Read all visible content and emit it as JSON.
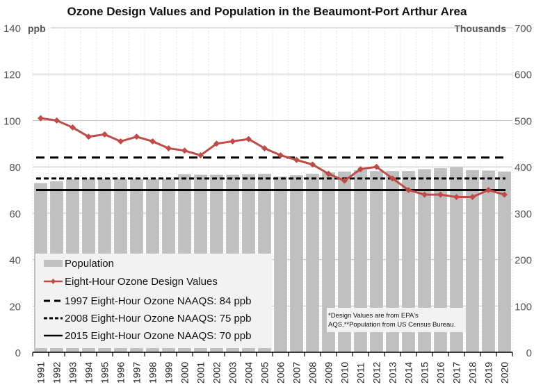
{
  "chart_data": {
    "type": "bar+line",
    "title": "Ozone Design Values and Population in the Beaumont-Port Arthur Area",
    "xlabel": "",
    "ylabel_left": "ppb",
    "ylabel_right": "Thousands",
    "ylim_left": [
      0,
      140
    ],
    "ylim_right": [
      0,
      700
    ],
    "yticks_left": [
      0,
      20,
      40,
      60,
      80,
      100,
      120,
      140
    ],
    "yticks_right": [
      0,
      100,
      200,
      300,
      400,
      500,
      600,
      700
    ],
    "grid": true,
    "categories": [
      "1991",
      "1992",
      "1993",
      "1994",
      "1995",
      "1996",
      "1997",
      "1998",
      "1999",
      "2000",
      "2001",
      "2002",
      "2003",
      "2004",
      "2005",
      "2006",
      "2007",
      "2008",
      "2009",
      "2010",
      "2011",
      "2012",
      "2013",
      "2014",
      "2015",
      "2016",
      "2017",
      "2018",
      "2019",
      "2020"
    ],
    "series": [
      {
        "name": "Population",
        "type": "bar",
        "axis": "right",
        "color": "#c0c0c0",
        "values": [
          365,
          369,
          373,
          374,
          374,
          374,
          374,
          374,
          374,
          384,
          383,
          383,
          383,
          384,
          385,
          379,
          382,
          385,
          388,
          390,
          393,
          391,
          391,
          391,
          395,
          397,
          399,
          393,
          392,
          390
        ]
      },
      {
        "name": "Eight-Hour Ozone Design Values",
        "type": "line",
        "axis": "left",
        "color": "#be4b48",
        "marker": "diamond",
        "values": [
          101,
          100,
          97,
          93,
          94,
          91,
          93,
          91,
          88,
          87,
          85,
          90,
          91,
          92,
          88,
          85,
          83,
          81,
          77,
          74,
          79,
          80,
          75,
          70,
          68,
          68,
          67,
          67,
          70,
          68
        ]
      },
      {
        "name": "1997 Eight-Hour Ozone NAAQS: 84 ppb",
        "type": "hline",
        "axis": "left",
        "style": "long-dash",
        "color": "#000000",
        "value": 84
      },
      {
        "name": "2008 Eight-Hour Ozone NAAQS: 75 ppb",
        "type": "hline",
        "axis": "left",
        "style": "short-dash",
        "color": "#000000",
        "value": 75
      },
      {
        "name": "2015 Eight-Hour Ozone NAAQS: 70 ppb",
        "type": "hline",
        "axis": "left",
        "style": "solid",
        "color": "#000000",
        "value": 70
      }
    ],
    "legend_position": "bottom-left",
    "annotation": "*Design Values are from EPA's AQS.**Population from US Census Bureau.",
    "annotation_lines": [
      "*Design Values are from EPA's",
      "AQS.**Population from US Census Bureau."
    ]
  }
}
